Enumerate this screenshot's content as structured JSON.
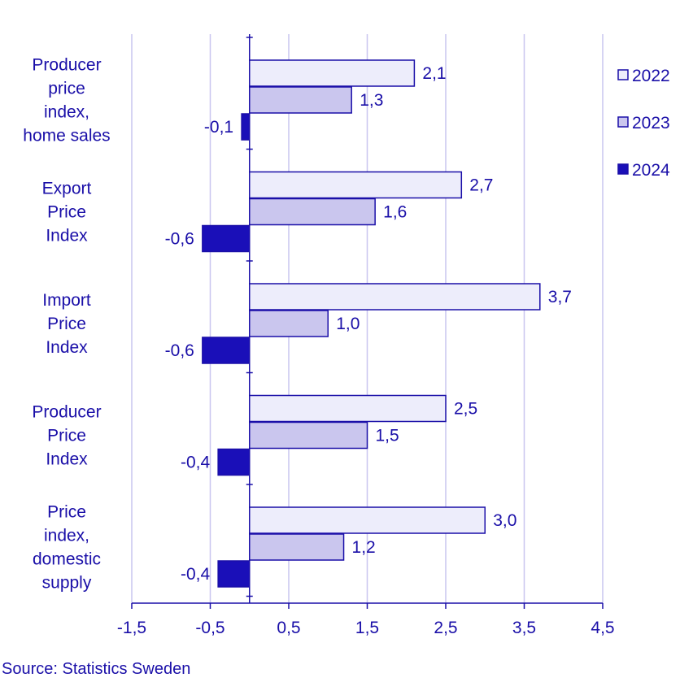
{
  "chart_data": {
    "type": "bar",
    "orientation": "horizontal",
    "categories": [
      [
        "Producer",
        "price",
        "index,",
        "home sales"
      ],
      [
        "Export",
        "Price",
        "Index"
      ],
      [
        "Import",
        "Price",
        "Index"
      ],
      [
        "Producer",
        "Price",
        "Index"
      ],
      [
        "Price",
        "index,",
        "domestic",
        "supply"
      ]
    ],
    "series": [
      {
        "name": "2022",
        "values": [
          2.1,
          2.7,
          3.7,
          2.5,
          3.0
        ],
        "labels": [
          "2,1",
          "2,7",
          "3,7",
          "2,5",
          "3,0"
        ],
        "color": "#ededfb"
      },
      {
        "name": "2023",
        "values": [
          1.3,
          1.6,
          1.0,
          1.5,
          1.2
        ],
        "labels": [
          "1,3",
          "1,6",
          "1,0",
          "1,5",
          "1,2"
        ],
        "color": "#cac6ee"
      },
      {
        "name": "2024",
        "values": [
          -0.1,
          -0.6,
          -0.6,
          -0.4,
          -0.4
        ],
        "labels": [
          "-0,1",
          "-0,6",
          "-0,6",
          "-0,4",
          "-0,4"
        ],
        "color": "#1a0fb8"
      }
    ],
    "xticks": [
      -1.5,
      -0.5,
      0.5,
      1.5,
      2.5,
      3.5,
      4.5
    ],
    "xtick_labels": [
      "-1,5",
      "-0,5",
      "0,5",
      "1,5",
      "2,5",
      "3,5",
      "4,5"
    ],
    "xlim": [
      -1.5,
      4.5
    ],
    "grid": true,
    "legend_position": "right",
    "stroke_color": "#1a0fa8",
    "grid_color": "#c9c6ef"
  },
  "source": "Source: Statistics Sweden"
}
